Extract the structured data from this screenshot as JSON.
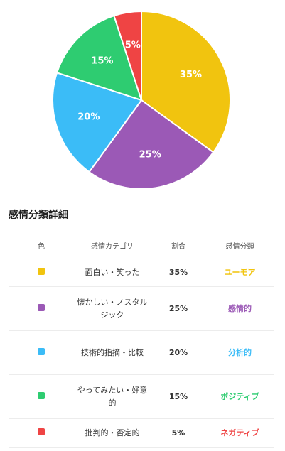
{
  "chart_data": {
    "type": "pie",
    "categories": [
      "面白い・笑った",
      "懐かしい・ノスタルジック",
      "技術的指摘・比較",
      "やってみたい・好意的",
      "批判的・否定的"
    ],
    "values": [
      35,
      25,
      20,
      15,
      5
    ],
    "data_labels": [
      "35%",
      "25%",
      "20%",
      "15%",
      "5%"
    ],
    "colors": [
      "#f1c40f",
      "#9b59b6",
      "#3bbcf7",
      "#2ecc71",
      "#ef4444"
    ],
    "start_angle": "12 o'clock",
    "direction": "clockwise"
  },
  "section_title": "感情分類詳細",
  "table": {
    "headers": [
      "色",
      "感情カテゴリ",
      "割合",
      "感情分類"
    ],
    "rows": [
      {
        "color": "#f1c40f",
        "category": "面白い・笑った",
        "percent": "35%",
        "class": "ユーモア",
        "class_color": "#f1c40f"
      },
      {
        "color": "#9b59b6",
        "category": "懐かしい・ノスタルジック",
        "percent": "25%",
        "class": "感情的",
        "class_color": "#9b59b6"
      },
      {
        "color": "#3bbcf7",
        "category": "技術的指摘・比較",
        "percent": "20%",
        "class": "分析的",
        "class_color": "#3bbcf7"
      },
      {
        "color": "#2ecc71",
        "category": "やってみたい・好意的",
        "percent": "15%",
        "class": "ポジティブ",
        "class_color": "#2ecc71"
      },
      {
        "color": "#ef4444",
        "category": "批判的・否定的",
        "percent": "5%",
        "class": "ネガティブ",
        "class_color": "#ef4444"
      }
    ]
  }
}
